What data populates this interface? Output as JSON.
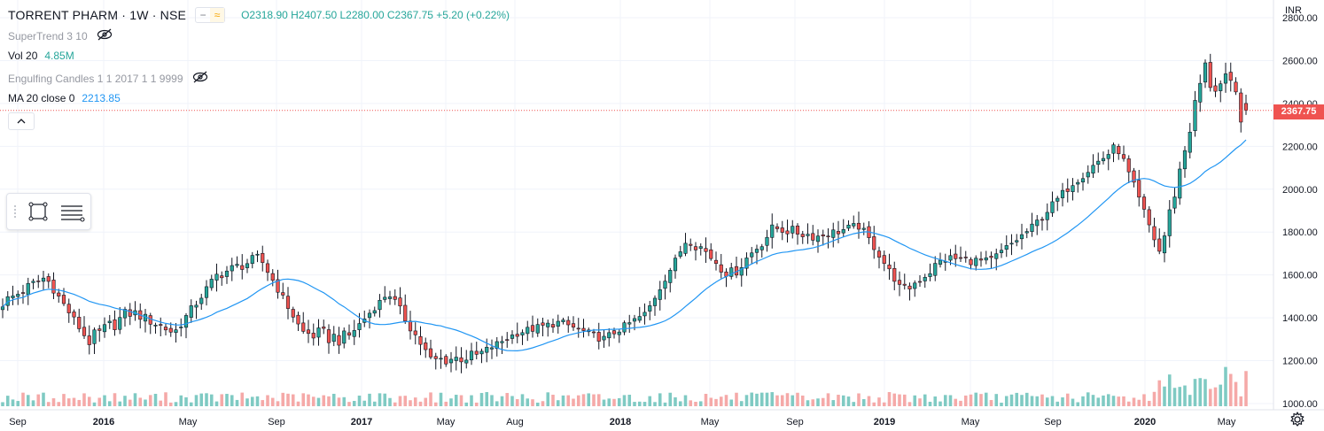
{
  "legend": {
    "symbol": "TORRENT PHARM · 1W · NSE",
    "ohlc": "O2318.90  H2407.50  L2280.00  C2367.75  +5.20 (+0.22%)",
    "supertrend": "SuperTrend 3 10",
    "vol_label": "Vol 20",
    "vol_value": "4.85M",
    "engulfing": "Engulfing Candles 1 1 2017 1 1 9999",
    "ma_label": "MA 20 close 0",
    "ma_value": "2213.85"
  },
  "price_axis": {
    "currency": "INR",
    "last_price": "2367.75",
    "ticks": [
      "2800.00",
      "2600.00",
      "2400.00",
      "2200.00",
      "2000.00",
      "1800.00",
      "1600.00",
      "1400.00",
      "1200.00",
      "1000.00"
    ]
  },
  "time_axis": {
    "labels": [
      "Sep",
      "2016",
      "May",
      "Sep",
      "2017",
      "May",
      "Aug",
      "2018",
      "May",
      "Sep",
      "2019",
      "May",
      "Sep",
      "2020",
      "May"
    ]
  },
  "colors": {
    "up": "#26a69a",
    "down": "#ef5350",
    "ma": "#2196f3",
    "volume_up": "#7fcac3",
    "volume_down": "#f5a9a8",
    "grid": "#f0f3fa",
    "axis_text": "#131722",
    "muted_text": "#9598a1"
  },
  "icons": {
    "hide": "eye-crossed-icon",
    "collapse": "chevron-up-icon",
    "rectangle_tool": "rectangle-icon",
    "lines_tool": "horizontal-lines-icon",
    "settings": "gear-icon"
  },
  "chart_data": {
    "type": "candlestick",
    "interval": "1W",
    "ylim": [
      1000,
      2800
    ],
    "last_close": 2367.75,
    "ma_period": 20,
    "candles_approx": [
      {
        "t": "2015-09",
        "o": 1610,
        "h": 1720,
        "l": 1390,
        "c": 1470
      },
      {
        "t": "2015-11",
        "o": 1520,
        "h": 1640,
        "l": 1430,
        "c": 1590
      },
      {
        "t": "2016-01",
        "o": 1530,
        "h": 1580,
        "l": 1190,
        "c": 1290
      },
      {
        "t": "2016-03",
        "o": 1330,
        "h": 1490,
        "l": 1230,
        "c": 1430
      },
      {
        "t": "2016-05",
        "o": 1420,
        "h": 1460,
        "l": 1230,
        "c": 1330
      },
      {
        "t": "2016-07",
        "o": 1350,
        "h": 1620,
        "l": 1330,
        "c": 1600
      },
      {
        "t": "2016-09",
        "o": 1600,
        "h": 1770,
        "l": 1580,
        "c": 1680
      },
      {
        "t": "2016-11",
        "o": 1600,
        "h": 1620,
        "l": 1190,
        "c": 1330
      },
      {
        "t": "2017-01",
        "o": 1330,
        "h": 1390,
        "l": 1220,
        "c": 1300
      },
      {
        "t": "2017-03",
        "o": 1360,
        "h": 1570,
        "l": 1320,
        "c": 1520
      },
      {
        "t": "2017-05",
        "o": 1460,
        "h": 1480,
        "l": 1150,
        "c": 1200
      },
      {
        "t": "2017-08",
        "o": 1240,
        "h": 1330,
        "l": 1150,
        "c": 1220
      },
      {
        "t": "2017-10",
        "o": 1220,
        "h": 1400,
        "l": 1200,
        "c": 1330
      },
      {
        "t": "2018-01",
        "o": 1330,
        "h": 1430,
        "l": 1230,
        "c": 1380
      },
      {
        "t": "2018-03",
        "o": 1380,
        "h": 1420,
        "l": 1230,
        "c": 1300
      },
      {
        "t": "2018-05",
        "o": 1320,
        "h": 1440,
        "l": 1290,
        "c": 1420
      },
      {
        "t": "2018-07",
        "o": 1420,
        "h": 1790,
        "l": 1400,
        "c": 1780
      },
      {
        "t": "2018-09",
        "o": 1840,
        "h": 1870,
        "l": 1540,
        "c": 1600
      },
      {
        "t": "2018-11",
        "o": 1600,
        "h": 1860,
        "l": 1580,
        "c": 1820
      },
      {
        "t": "2019-01",
        "o": 1850,
        "h": 1960,
        "l": 1730,
        "c": 1780
      },
      {
        "t": "2019-03",
        "o": 1800,
        "h": 1960,
        "l": 1790,
        "c": 1830
      },
      {
        "t": "2019-05",
        "o": 1800,
        "h": 1810,
        "l": 1480,
        "c": 1520
      },
      {
        "t": "2019-07",
        "o": 1520,
        "h": 1700,
        "l": 1460,
        "c": 1680
      },
      {
        "t": "2019-09",
        "o": 1680,
        "h": 1760,
        "l": 1560,
        "c": 1660
      },
      {
        "t": "2019-11",
        "o": 1660,
        "h": 1850,
        "l": 1640,
        "c": 1820
      },
      {
        "t": "2020-01",
        "o": 1820,
        "h": 2070,
        "l": 1800,
        "c": 2040
      },
      {
        "t": "2020-02",
        "o": 2040,
        "h": 2290,
        "l": 2000,
        "c": 2200
      },
      {
        "t": "2020-03",
        "o": 1950,
        "h": 2020,
        "l": 1580,
        "c": 1700
      },
      {
        "t": "2020-04",
        "o": 1700,
        "h": 2700,
        "l": 1690,
        "c": 2550
      },
      {
        "t": "2020-05",
        "o": 2400,
        "h": 2640,
        "l": 2280,
        "c": 2367.75
      }
    ]
  }
}
